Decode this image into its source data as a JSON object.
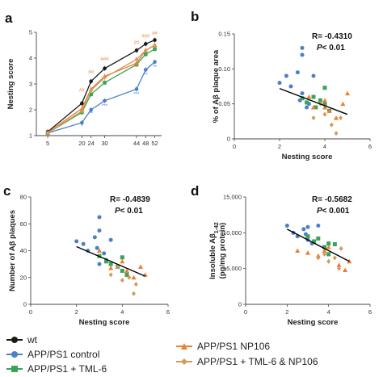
{
  "colors": {
    "wt": "#1a1a1a",
    "control": "#4a7fc9",
    "tml6": "#3aa35a",
    "np106": "#ee7d31",
    "combo": "#d39a5a",
    "fit": "#000000"
  },
  "legend": [
    {
      "key": "wt",
      "label": "wt",
      "marker": "circle"
    },
    {
      "key": "control",
      "label": "APP/PS1 control",
      "marker": "circle"
    },
    {
      "key": "tml6",
      "label": "APP/PS1 + TML-6",
      "marker": "square"
    },
    {
      "key": "np106",
      "label": "APP/PS1 NP106",
      "marker": "triangle"
    },
    {
      "key": "combo",
      "label": "APP/PS1 + TML-6 & NP106",
      "marker": "diamond"
    }
  ],
  "chart_data": [
    {
      "panel": "a",
      "type": "line",
      "title": "",
      "xlabel": "",
      "ylabel": "Nesting score",
      "xlim": [
        0,
        55
      ],
      "ylim": [
        1,
        5
      ],
      "x_ticks": [
        5,
        20,
        24,
        30,
        44,
        48,
        52
      ],
      "y_ticks": [
        1,
        2,
        3,
        4,
        5
      ],
      "x": [
        5,
        20,
        24,
        30,
        44,
        48,
        52
      ],
      "series": [
        {
          "key": "wt",
          "values": [
            1.15,
            2.25,
            3.1,
            3.6,
            4.3,
            4.55,
            4.7
          ]
        },
        {
          "key": "control",
          "values": [
            1.1,
            1.5,
            2.0,
            2.35,
            2.8,
            3.55,
            3.85
          ]
        },
        {
          "key": "tml6",
          "values": [
            1.1,
            1.9,
            2.6,
            3.05,
            3.75,
            4.15,
            4.35
          ]
        },
        {
          "key": "np106",
          "values": [
            1.12,
            2.05,
            2.8,
            3.3,
            3.8,
            4.3,
            4.5
          ]
        },
        {
          "key": "combo",
          "values": [
            1.1,
            1.95,
            2.75,
            3.25,
            3.95,
            4.3,
            4.5
          ]
        }
      ],
      "annotations": [
        {
          "x": 20,
          "y": 1.3,
          "text": "*",
          "key": "control"
        },
        {
          "x": 24,
          "y": 1.8,
          "text": "**",
          "key": "control"
        },
        {
          "x": 30,
          "y": 2.1,
          "text": "***",
          "key": "control"
        },
        {
          "x": 44,
          "y": 2.55,
          "text": "***",
          "key": "control"
        },
        {
          "x": 48,
          "y": 3.3,
          "text": "**",
          "key": "control"
        },
        {
          "x": 52,
          "y": 3.6,
          "text": "**",
          "key": "control"
        },
        {
          "x": 20,
          "y": 2.7,
          "text": "##",
          "key": "np106"
        },
        {
          "x": 24,
          "y": 3.4,
          "text": "##",
          "key": "np106"
        },
        {
          "x": 30,
          "y": 3.9,
          "text": "###",
          "key": "np106"
        },
        {
          "x": 44,
          "y": 4.55,
          "text": "##",
          "key": "np106"
        },
        {
          "x": 48,
          "y": 4.8,
          "text": "###",
          "key": "np106"
        },
        {
          "x": 52,
          "y": 4.9,
          "text": "##",
          "key": "np106"
        }
      ]
    },
    {
      "panel": "b",
      "type": "scatter",
      "xlabel": "Nesting score",
      "ylabel": "% of Aβ plaque area",
      "xlim": [
        0,
        6
      ],
      "ylim": [
        0,
        0.15
      ],
      "x_ticks": [
        0,
        2,
        4,
        6
      ],
      "y_ticks": [
        0,
        0.05,
        0.1,
        0.15
      ],
      "y_tick_labels": [
        "0",
        "0.05",
        "0.10",
        "0.15"
      ],
      "stat_r": "R= -0.4310",
      "stat_p": "P< 0.01",
      "fit": {
        "x": [
          2,
          5
        ],
        "y": [
          0.072,
          0.035
        ]
      },
      "series": [
        {
          "key": "control",
          "x": [
            2,
            2.3,
            2.5,
            2.8,
            3.0,
            3.0,
            3.0,
            3.2,
            3.3,
            3.5,
            2.9
          ],
          "y": [
            0.08,
            0.09,
            0.075,
            0.095,
            0.13,
            0.12,
            0.065,
            0.045,
            0.05,
            0.09,
            0.055
          ]
        },
        {
          "key": "tml6",
          "x": [
            3.0,
            3.5,
            4.0,
            4.0,
            4.2,
            3.6,
            3.8,
            3.2
          ],
          "y": [
            0.058,
            0.06,
            0.073,
            0.05,
            0.04,
            0.045,
            0.055,
            0.052
          ]
        },
        {
          "key": "np106",
          "x": [
            3.3,
            3.5,
            4.0,
            4.2,
            4.5,
            4.8,
            5.0,
            4.0
          ],
          "y": [
            0.06,
            0.045,
            0.055,
            0.04,
            0.03,
            0.05,
            0.065,
            0.045
          ]
        },
        {
          "key": "combo",
          "x": [
            3.5,
            3.8,
            4.0,
            4.3,
            4.5,
            4.7
          ],
          "y": [
            0.03,
            0.05,
            0.035,
            0.02,
            0.008,
            0.03
          ]
        }
      ]
    },
    {
      "panel": "c",
      "type": "scatter",
      "xlabel": "Nesting score",
      "ylabel": "Number of Aβ plaques",
      "xlim": [
        0,
        6
      ],
      "ylim": [
        0,
        80
      ],
      "x_ticks": [
        0,
        2,
        4,
        6
      ],
      "y_ticks": [
        0,
        20,
        40,
        60,
        80
      ],
      "stat_r": "R= -0.4839",
      "stat_p": "P< 0.01",
      "fit": {
        "x": [
          2,
          5
        ],
        "y": [
          43,
          21
        ]
      },
      "series": [
        {
          "key": "control",
          "x": [
            2,
            2.3,
            2.5,
            2.8,
            3.0,
            3.0,
            3.2,
            3.3,
            3.5,
            2.9,
            3.0
          ],
          "y": [
            47,
            45,
            40,
            50,
            65,
            55,
            38,
            33,
            48,
            42,
            30
          ]
        },
        {
          "key": "tml6",
          "x": [
            3.0,
            3.3,
            3.5,
            4.0,
            4.0,
            3.8,
            4.2
          ],
          "y": [
            36,
            32,
            30,
            35,
            25,
            28,
            22
          ]
        },
        {
          "key": "np106",
          "x": [
            3.0,
            3.5,
            4.0,
            4.2,
            4.5,
            4.8,
            5.0
          ],
          "y": [
            40,
            27,
            32,
            25,
            20,
            28,
            22
          ]
        },
        {
          "key": "combo",
          "x": [
            3.5,
            3.8,
            4.0,
            4.3,
            4.5,
            4.6
          ],
          "y": [
            22,
            28,
            18,
            20,
            8,
            15
          ]
        }
      ]
    },
    {
      "panel": "d",
      "type": "scatter",
      "xlabel": "Nesting score",
      "ylabel": "Insoluble Aβ1-42",
      "ylabel_unit": "(pg/mg protein)",
      "xlim": [
        0,
        6
      ],
      "ylim": [
        0,
        15000
      ],
      "x_ticks": [
        0,
        2,
        4,
        6
      ],
      "y_ticks": [
        0,
        5000,
        10000,
        15000
      ],
      "y_tick_labels": [
        "0",
        "5,000",
        "10,000",
        "15,000"
      ],
      "stat_r": "R= -0.5682",
      "stat_p": "P< 0.001",
      "fit": {
        "x": [
          2,
          5
        ],
        "y": [
          10500,
          6000
        ]
      },
      "series": [
        {
          "key": "control",
          "x": [
            2,
            2.3,
            2.5,
            2.8,
            3.0,
            3.0,
            3.2,
            3.5,
            2.9
          ],
          "y": [
            11000,
            10000,
            9500,
            10500,
            10800,
            9000,
            8500,
            11000,
            9800
          ]
        },
        {
          "key": "tml6",
          "x": [
            3.0,
            3.3,
            3.5,
            4.0,
            4.0,
            3.8,
            4.3
          ],
          "y": [
            9500,
            8800,
            9200,
            8500,
            7000,
            8000,
            8400
          ]
        },
        {
          "key": "np106",
          "x": [
            2.5,
            3.0,
            3.5,
            3.8,
            4.0,
            4.5,
            4.8,
            5.0
          ],
          "y": [
            7500,
            7200,
            6800,
            7500,
            8000,
            5500,
            4800,
            6000
          ]
        },
        {
          "key": "combo",
          "x": [
            3.5,
            3.8,
            4.0,
            4.3,
            4.5,
            4.6
          ],
          "y": [
            6500,
            7000,
            6000,
            6500,
            5000,
            7800
          ]
        }
      ]
    }
  ]
}
